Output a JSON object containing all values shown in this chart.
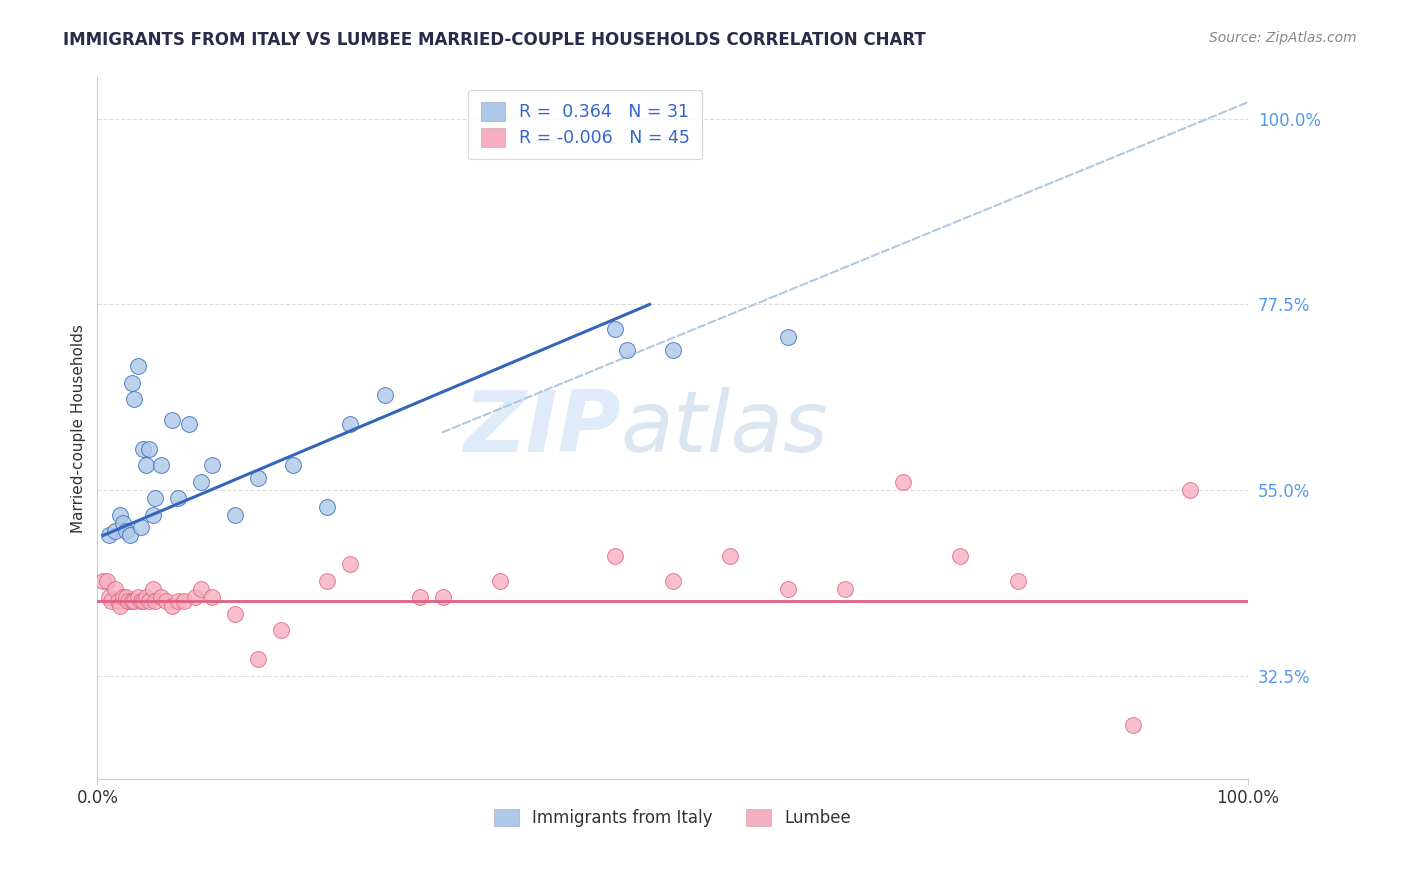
{
  "title": "IMMIGRANTS FROM ITALY VS LUMBEE MARRIED-COUPLE HOUSEHOLDS CORRELATION CHART",
  "source": "Source: ZipAtlas.com",
  "ylabel": "Married-couple Households",
  "legend_labels": [
    "Immigrants from Italy",
    "Lumbee"
  ],
  "R1": 0.364,
  "N1": 31,
  "R2": -0.006,
  "N2": 45,
  "color1": "#adc8e8",
  "color2": "#f5afc0",
  "line1_color": "#3366bb",
  "line2_color": "#e06080",
  "dash_color": "#b0c8e0",
  "background": "#ffffff",
  "xmin": 0.0,
  "xmax": 1.0,
  "ymin": 0.2,
  "ymax": 1.05,
  "yticks": [
    0.325,
    0.55,
    0.775,
    1.0
  ],
  "ytick_labels": [
    "32.5%",
    "55.0%",
    "77.5%",
    "100.0%"
  ],
  "xtick_labels": [
    "0.0%",
    "100.0%"
  ],
  "xticks": [
    0.0,
    1.0
  ],
  "series1_x": [
    0.01,
    0.015,
    0.02,
    0.022,
    0.025,
    0.028,
    0.03,
    0.032,
    0.035,
    0.038,
    0.04,
    0.042,
    0.045,
    0.048,
    0.05,
    0.055,
    0.065,
    0.07,
    0.08,
    0.09,
    0.1,
    0.12,
    0.14,
    0.17,
    0.2,
    0.22,
    0.25,
    0.45,
    0.46,
    0.5,
    0.6
  ],
  "series1_y": [
    0.495,
    0.5,
    0.52,
    0.51,
    0.5,
    0.495,
    0.68,
    0.66,
    0.7,
    0.505,
    0.6,
    0.58,
    0.6,
    0.52,
    0.54,
    0.58,
    0.635,
    0.54,
    0.63,
    0.56,
    0.58,
    0.52,
    0.565,
    0.58,
    0.53,
    0.63,
    0.665,
    0.745,
    0.72,
    0.72,
    0.735
  ],
  "series2_x": [
    0.005,
    0.008,
    0.01,
    0.012,
    0.015,
    0.018,
    0.02,
    0.022,
    0.025,
    0.027,
    0.03,
    0.032,
    0.035,
    0.038,
    0.04,
    0.042,
    0.045,
    0.048,
    0.05,
    0.055,
    0.06,
    0.065,
    0.07,
    0.075,
    0.085,
    0.09,
    0.1,
    0.12,
    0.14,
    0.16,
    0.2,
    0.22,
    0.28,
    0.3,
    0.35,
    0.45,
    0.5,
    0.55,
    0.6,
    0.65,
    0.7,
    0.75,
    0.8,
    0.9,
    0.95
  ],
  "series2_y": [
    0.44,
    0.44,
    0.42,
    0.415,
    0.43,
    0.415,
    0.41,
    0.42,
    0.42,
    0.415,
    0.415,
    0.415,
    0.42,
    0.415,
    0.415,
    0.42,
    0.415,
    0.43,
    0.415,
    0.42,
    0.415,
    0.41,
    0.415,
    0.415,
    0.42,
    0.43,
    0.42,
    0.4,
    0.345,
    0.38,
    0.44,
    0.46,
    0.42,
    0.42,
    0.44,
    0.47,
    0.44,
    0.47,
    0.43,
    0.43,
    0.56,
    0.47,
    0.44,
    0.265,
    0.55
  ],
  "watermark_zip": "ZIP",
  "watermark_atlas": "atlas",
  "grid_color": "#dddddd",
  "blue_line_x0": 0.005,
  "blue_line_x1": 0.48,
  "blue_line_y0": 0.495,
  "blue_line_y1": 0.775,
  "pink_line_y": 0.415,
  "dash_line_x0": 0.3,
  "dash_line_x1": 1.0,
  "dash_line_y0": 0.62,
  "dash_line_y1": 1.02
}
